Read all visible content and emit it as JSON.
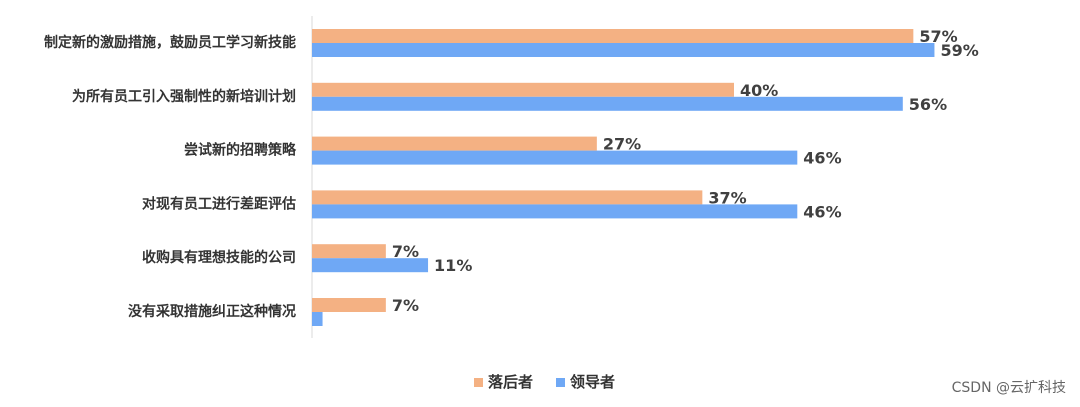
{
  "chart_data": {
    "type": "bar",
    "orientation": "horizontal",
    "categories": [
      "制定新的激励措施，鼓励员工学习新技能",
      "为所有员工引入强制性的新培训计划",
      "尝试新的招聘策略",
      "对现有员工进行差距评估",
      "收购具有理想技能的公司",
      "没有采取措施纠正这种情况"
    ],
    "series": [
      {
        "name": "落后者",
        "color": "#F4B183",
        "values": [
          57,
          40,
          27,
          37,
          7,
          7
        ],
        "labels": [
          "57%",
          "40%",
          "27%",
          "37%",
          "7%",
          "7%"
        ]
      },
      {
        "name": "领导者",
        "color": "#6FA8F5",
        "values": [
          59,
          56,
          46,
          46,
          11,
          1
        ],
        "labels": [
          "59%",
          "56%",
          "46%",
          "46%",
          "11%",
          ""
        ]
      }
    ],
    "xlim": [
      0,
      100
    ],
    "grid": false,
    "legend": "bottom"
  },
  "watermark": "CSDN @云扩科技"
}
